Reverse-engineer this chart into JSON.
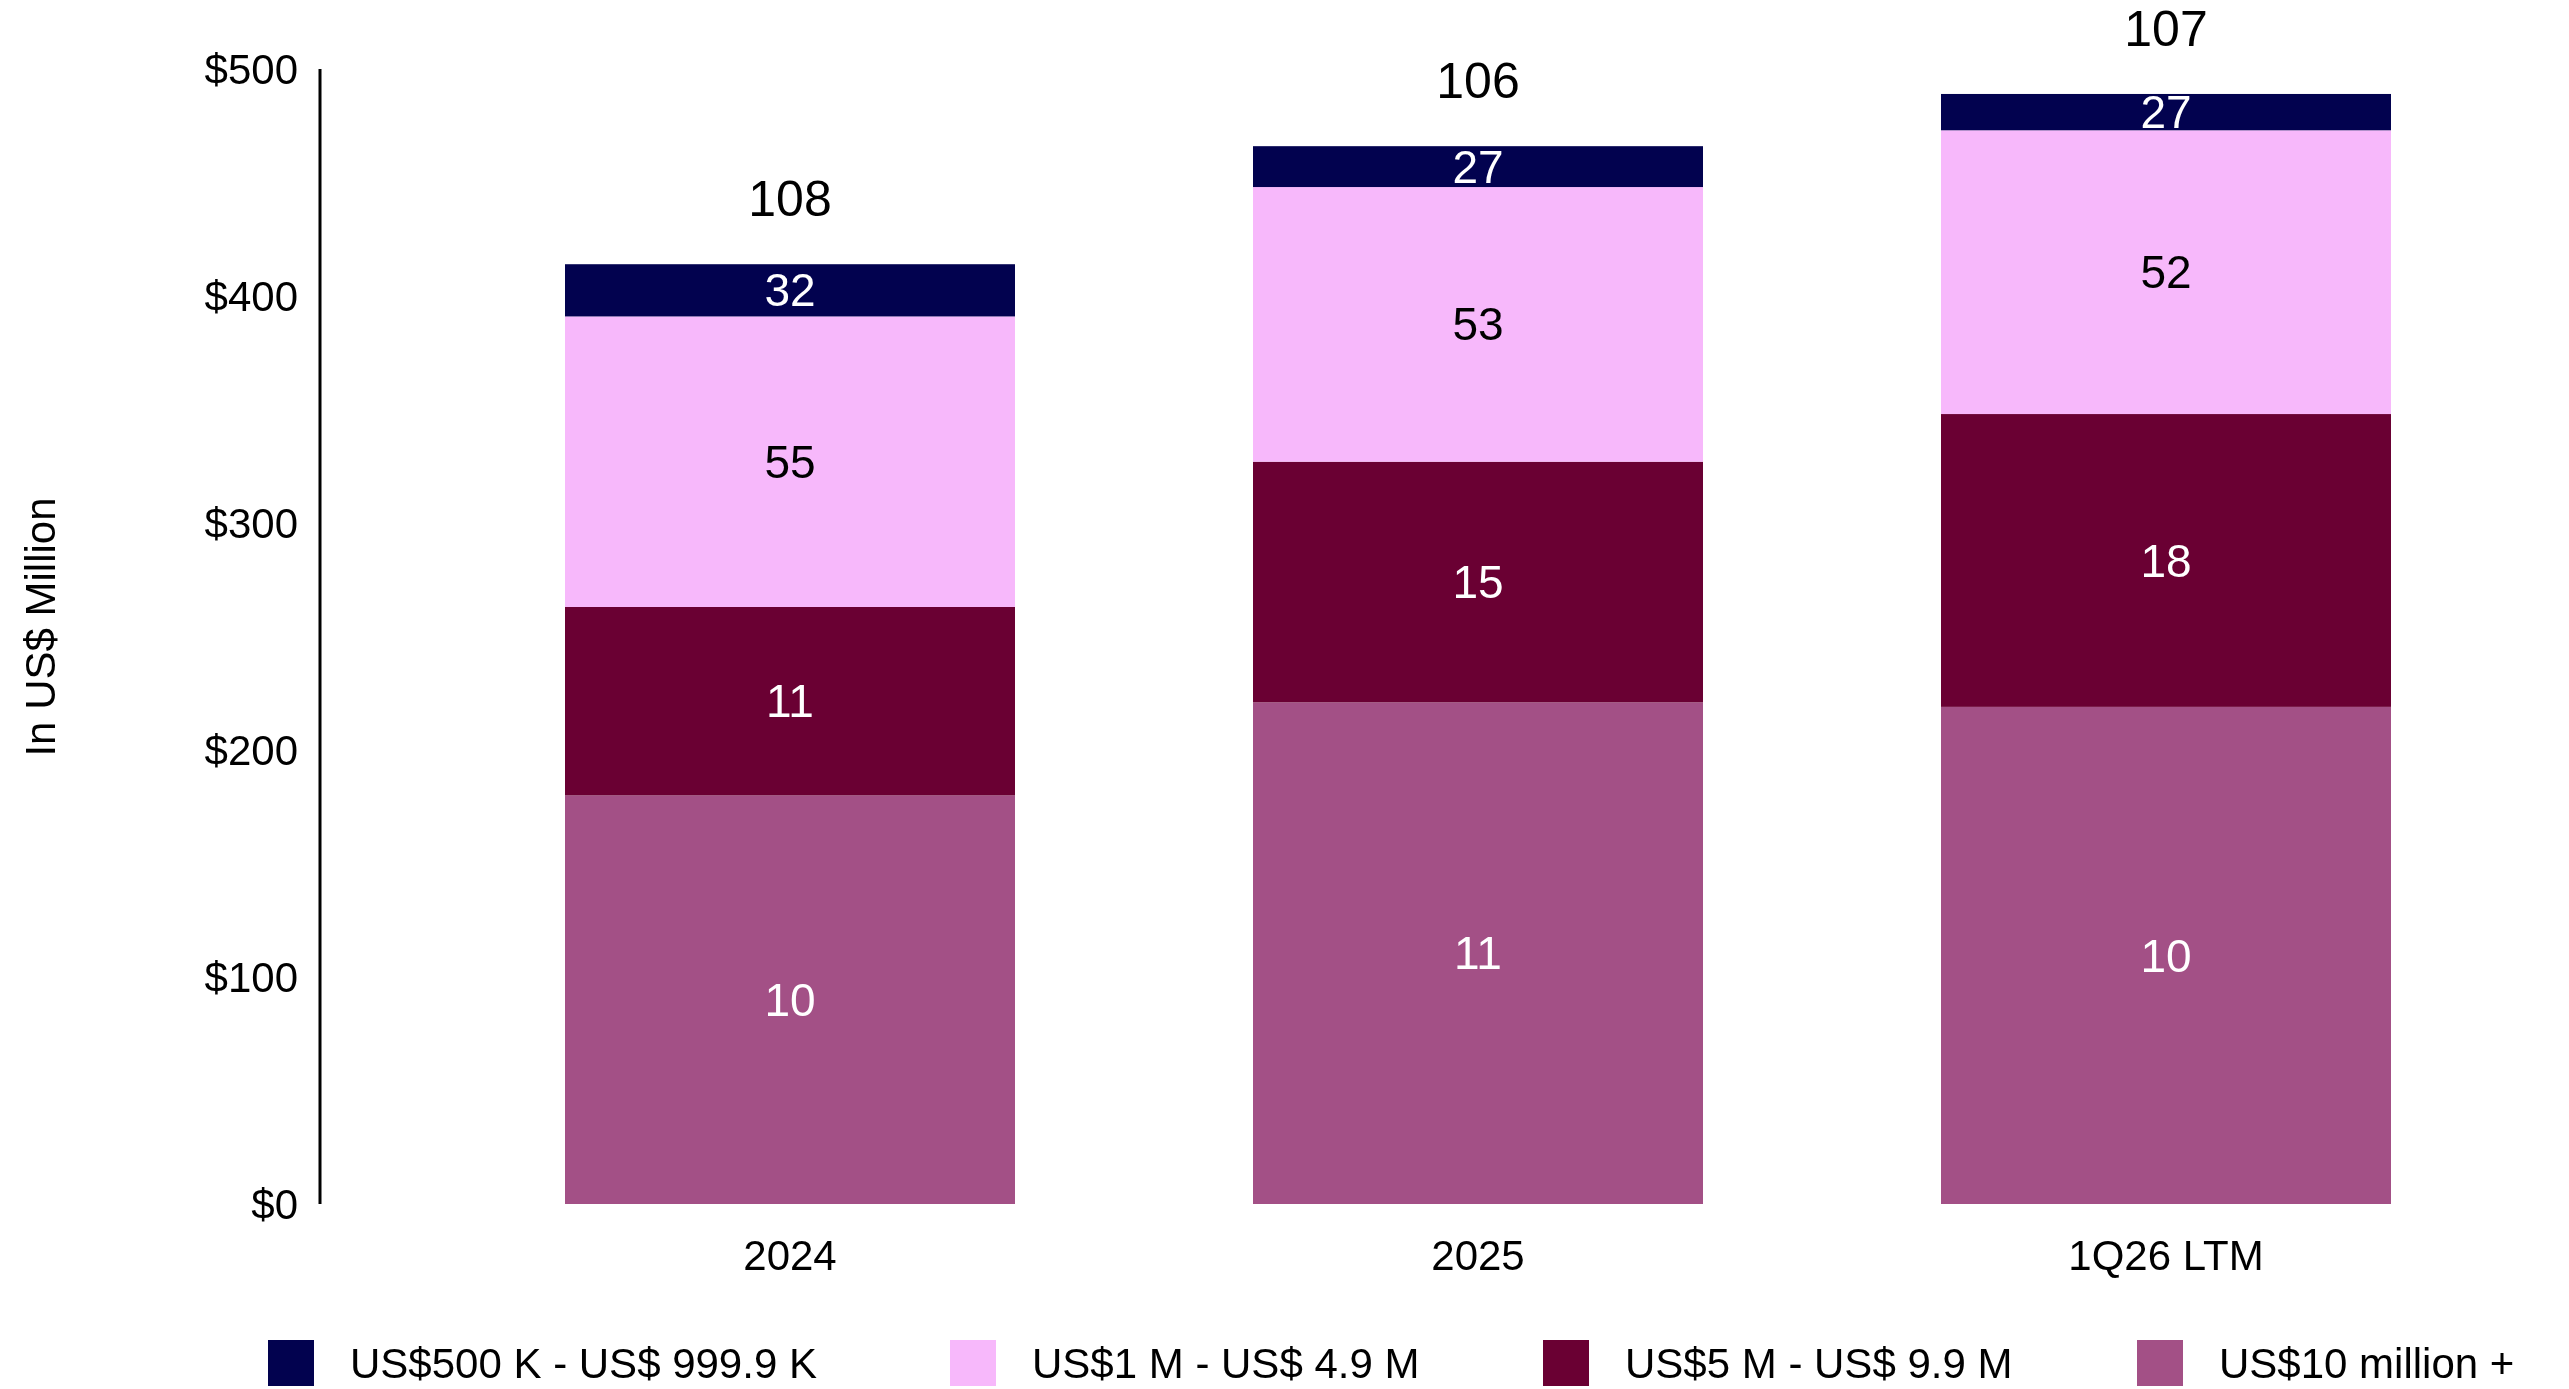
{
  "chart_data": {
    "type": "bar",
    "stacked": true,
    "ylabel": "In US$ Million",
    "categories": [
      "2024",
      "2025",
      "1Q26 LTM"
    ],
    "ylim": [
      0,
      500
    ],
    "yticks": [
      {
        "value": 0,
        "label": "$0"
      },
      {
        "value": 100,
        "label": "$100"
      },
      {
        "value": 200,
        "label": "$200"
      },
      {
        "value": 300,
        "label": "$300"
      },
      {
        "value": 400,
        "label": "$400"
      },
      {
        "value": 500,
        "label": "$500"
      }
    ],
    "grid": false,
    "legend": "bottom",
    "series": [
      {
        "name": "US$10 million +",
        "color": "#a35086",
        "values": [
          180,
          221,
          219
        ]
      },
      {
        "name": "US$5 M - US$ 9.9 M",
        "color": "#6a0033",
        "values": [
          83,
          106,
          129
        ]
      },
      {
        "name": "US$1 M - US$ 4.9 M",
        "color": "#f7b8fb",
        "values": [
          128,
          121,
          125
        ]
      },
      {
        "name": "US$500 K - US$ 999.9 K",
        "color": "#02024f",
        "values": [
          23,
          18,
          16
        ]
      }
    ],
    "annotations": [
      "10",
      "11",
      "55",
      "32",
      "108",
      "11",
      "15",
      "53",
      "27",
      "106",
      "10",
      "18",
      "52",
      "27",
      "107"
    ]
  }
}
